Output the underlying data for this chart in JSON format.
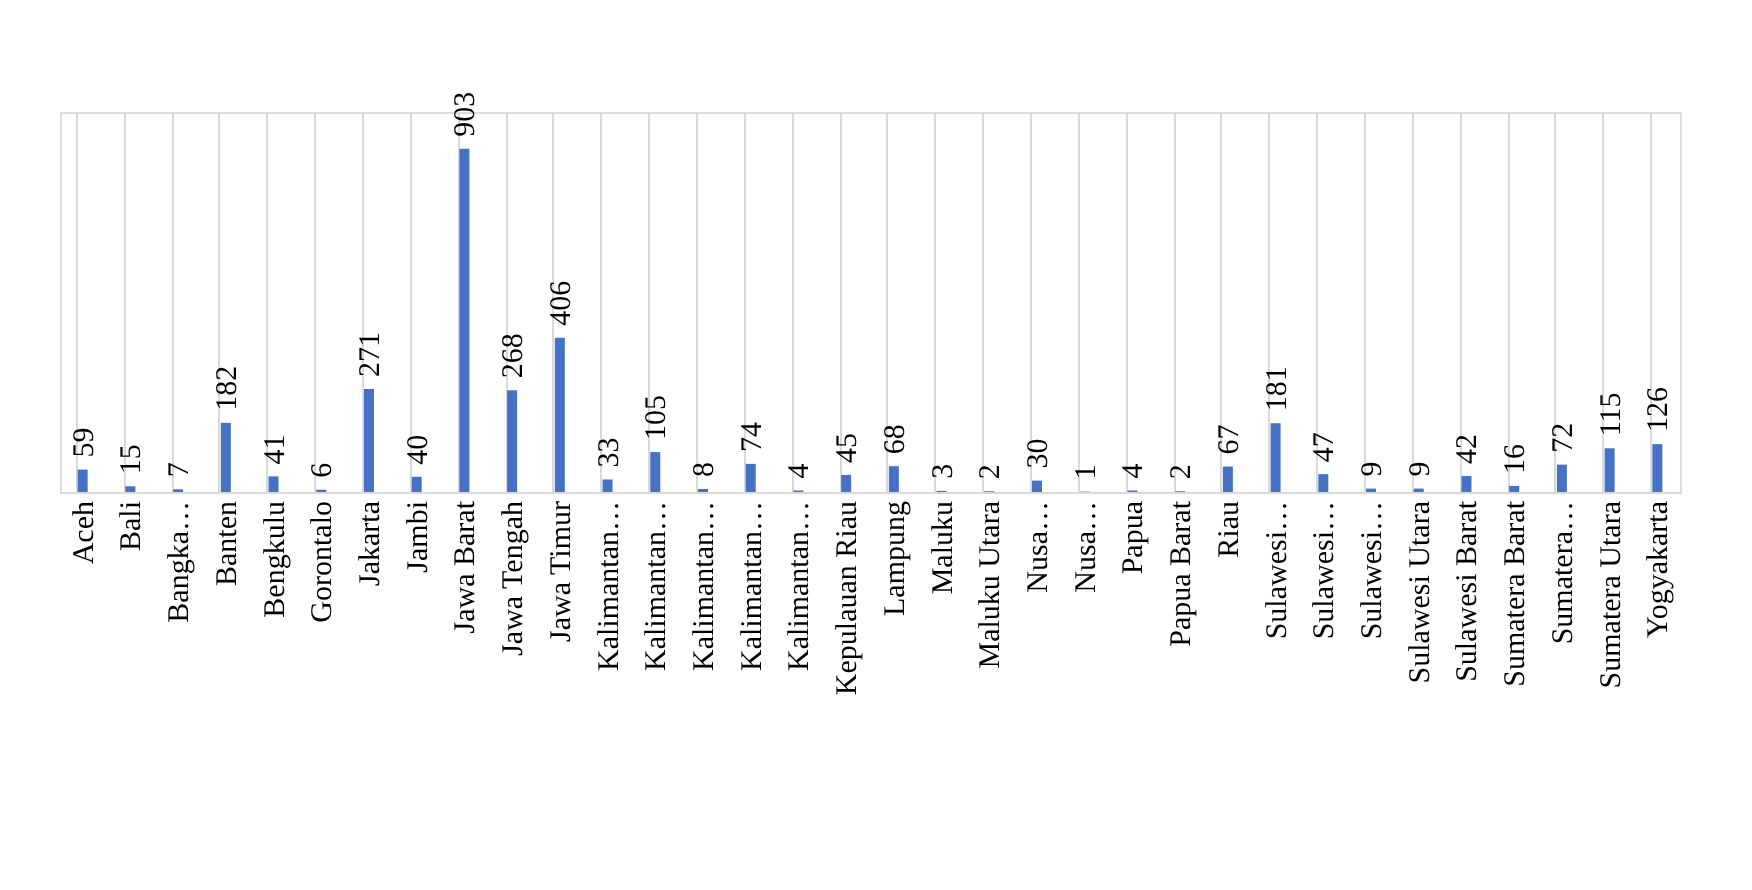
{
  "chart_data": {
    "type": "bar",
    "categories": [
      "Aceh",
      "Bali",
      "Bangka…",
      "Banten",
      "Bengkulu",
      "Gorontalo",
      "Jakarta",
      "Jambi",
      "Jawa Barat",
      "Jawa Tengah",
      "Jawa Timur",
      "Kalimantan…",
      "Kalimantan…",
      "Kalimantan…",
      "Kalimantan…",
      "Kalimantan…",
      "Kepulauan Riau",
      "Lampung",
      "Maluku",
      "Maluku Utara",
      "Nusa…",
      "Nusa…",
      "Papua",
      "Papua Barat",
      "Riau",
      "Sulawesi…",
      "Sulawesi…",
      "Sulawesi…",
      "Sulawesi Utara",
      "Sulawesi Barat",
      "Sumatera Barat",
      "Sumatera…",
      "Sumatera Utara",
      "Yogyakarta"
    ],
    "values": [
      59,
      15,
      7,
      182,
      41,
      6,
      271,
      40,
      903,
      268,
      406,
      33,
      105,
      8,
      74,
      4,
      45,
      68,
      3,
      2,
      30,
      1,
      4,
      2,
      67,
      181,
      47,
      9,
      9,
      42,
      16,
      72,
      115,
      126
    ],
    "color": "#4472c4",
    "data_labels": true,
    "grid": "x"
  }
}
